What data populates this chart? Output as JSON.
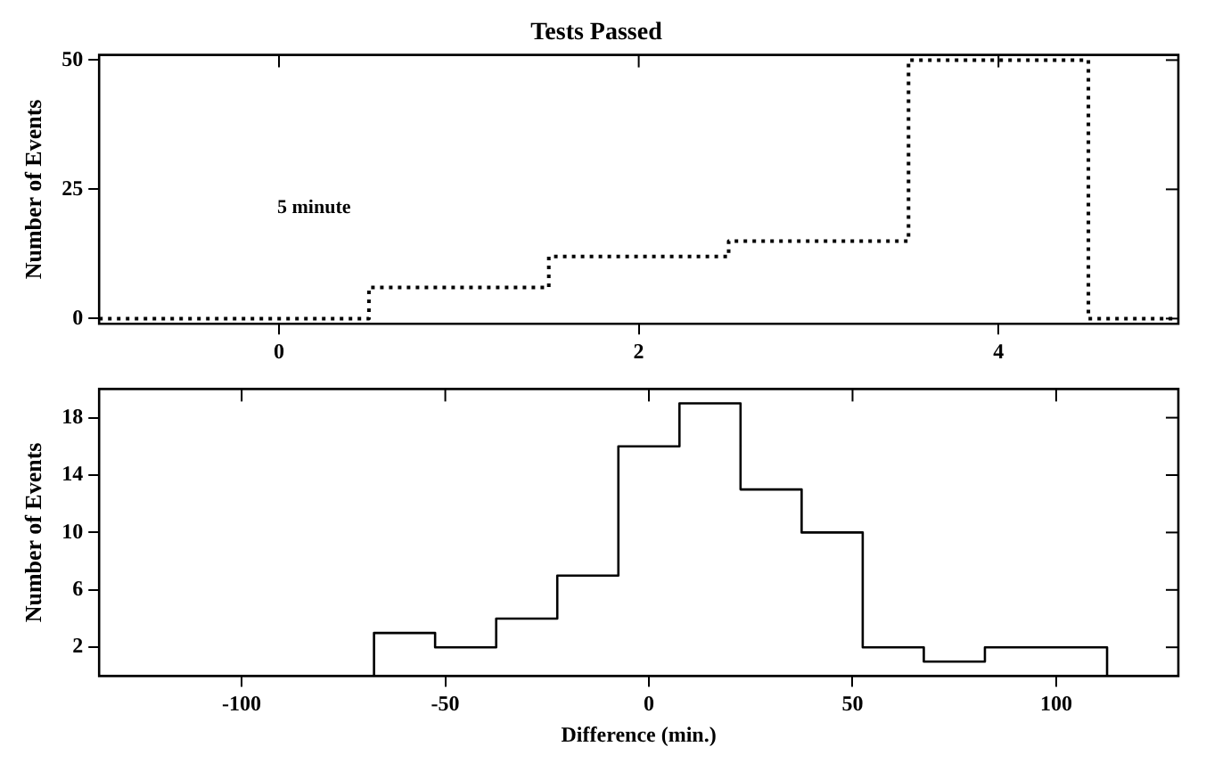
{
  "chart_data": [
    {
      "type": "step",
      "title": "Tests Passed",
      "ylabel": "Number of Events",
      "x": [
        -1,
        0.5,
        1.5,
        2.5,
        3.5,
        4.5,
        5
      ],
      "values": [
        0,
        6,
        12,
        15,
        50,
        0,
        0
      ],
      "color": "#000000",
      "line_style": "dotted",
      "xlim": [
        -1,
        5
      ],
      "xticks": [
        0,
        2,
        4
      ],
      "ylim": [
        -1,
        51
      ],
      "yticks": [
        0,
        25,
        50
      ],
      "grid": false,
      "legend": false,
      "annotations": [
        "5 minute"
      ]
    },
    {
      "type": "histogram",
      "xlabel": "Difference (min.)",
      "ylabel": "Number of Events",
      "bins": [
        -67.5,
        -52.5,
        -37.5,
        -22.5,
        -7.5,
        7.5,
        22.5,
        37.5,
        52.5,
        67.5,
        82.5,
        97.5,
        112.5
      ],
      "values": [
        3,
        2,
        4,
        7,
        16,
        19,
        13,
        10,
        2,
        1,
        2,
        2
      ],
      "color": "#000000",
      "line_style": "solid",
      "xlim": [
        -135,
        130
      ],
      "xticks": [
        -100,
        -50,
        0,
        50,
        100
      ],
      "ylim": [
        0,
        20
      ],
      "yticks": [
        2,
        6,
        10,
        14,
        18
      ],
      "grid": false,
      "legend": false
    }
  ]
}
